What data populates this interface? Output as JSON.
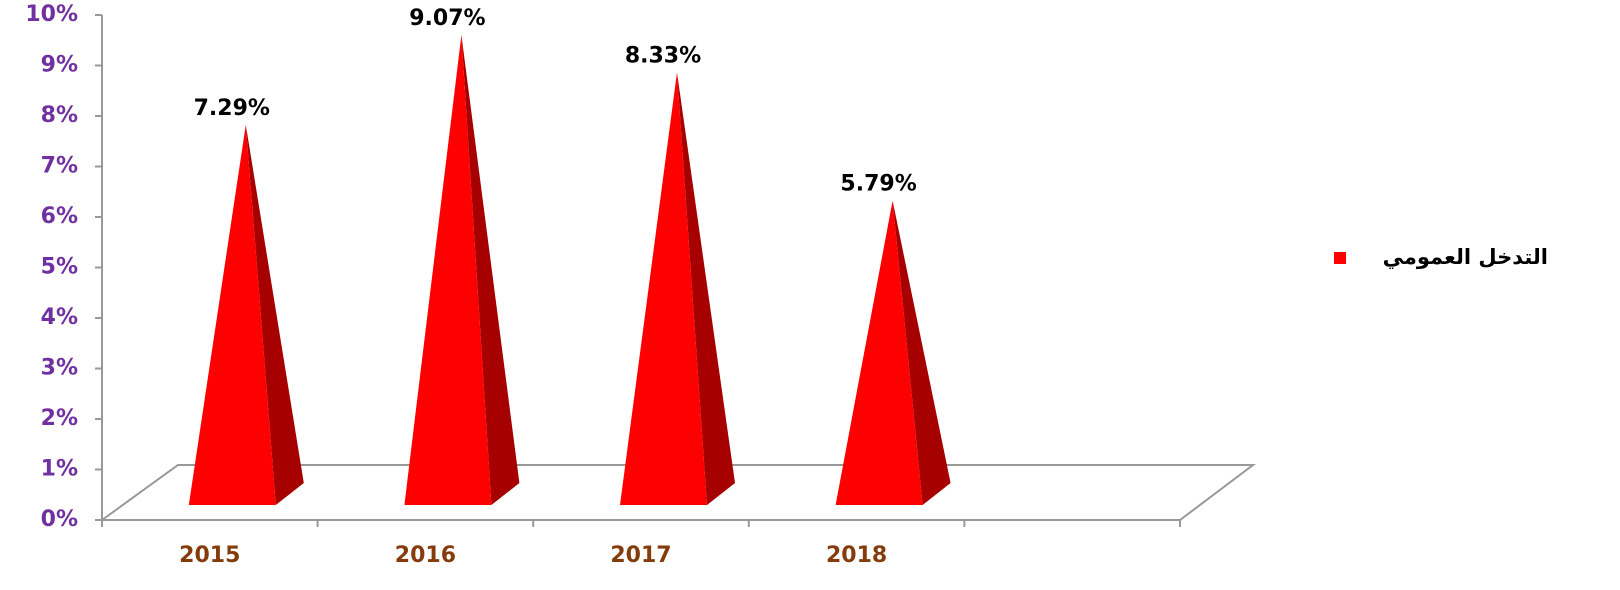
{
  "chart_data": {
    "type": "pyramid",
    "categories": [
      "2015",
      "2016",
      "2017",
      "2018",
      null
    ],
    "series": [
      {
        "name": "التدخل العمومي",
        "color": "#ff0000",
        "values": [
          7.29,
          9.07,
          8.33,
          5.79,
          null
        ],
        "value_labels": [
          "7.29%",
          "9.07%",
          "8.33%",
          "5.79%",
          null
        ]
      }
    ],
    "ylim": [
      0,
      10
    ],
    "yticks": [
      {
        "value": 0,
        "label": "0%"
      },
      {
        "value": 1,
        "label": "1%"
      },
      {
        "value": 2,
        "label": "2%"
      },
      {
        "value": 3,
        "label": "3%"
      },
      {
        "value": 4,
        "label": "4%"
      },
      {
        "value": 5,
        "label": "5%"
      },
      {
        "value": 6,
        "label": "6%"
      },
      {
        "value": 7,
        "label": "7%"
      },
      {
        "value": 8,
        "label": "8%"
      },
      {
        "value": 9,
        "label": "9%"
      },
      {
        "value": 10,
        "label": "10%"
      }
    ],
    "legend": "right"
  }
}
